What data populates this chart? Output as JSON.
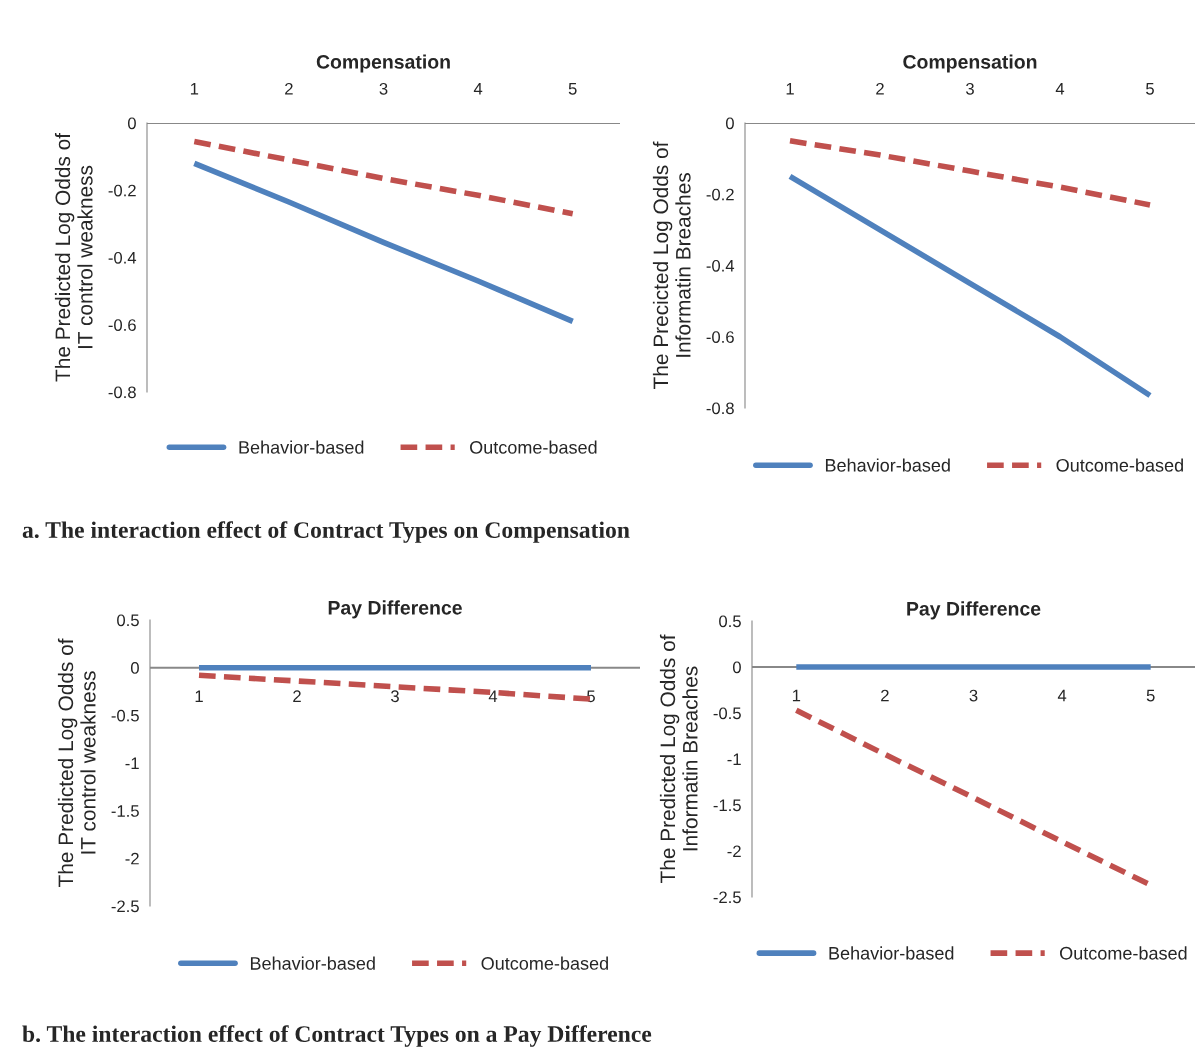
{
  "chart_data": [
    {
      "type": "line",
      "xlabel": "Compensation",
      "ylabel": "The Predicted Log Odds of\nIT control weakness",
      "xlim": [
        0.5,
        5.5
      ],
      "xticks": [
        1,
        2,
        3,
        4,
        5
      ],
      "ylim": [
        -0.8,
        0
      ],
      "yticks": [
        0,
        -0.2,
        -0.4,
        -0.6,
        -0.8
      ],
      "grid": false,
      "legend": "bottom",
      "marker": "none",
      "series": [
        {
          "name": "Behavior-based",
          "color": "#4f81bd",
          "x": [
            1,
            2,
            3,
            4,
            5
          ],
          "values": [
            -0.12,
            -0.235,
            -0.355,
            -0.47,
            -0.59
          ],
          "line_style": "solid"
        },
        {
          "name": "Outcome-based",
          "color": "#c0504d",
          "x": [
            1,
            2,
            3,
            4,
            5
          ],
          "values": [
            -0.055,
            -0.11,
            -0.165,
            -0.215,
            -0.27
          ],
          "line_style": "dashed"
        }
      ]
    },
    {
      "type": "line",
      "xlabel": "Compensation",
      "ylabel": "The Precicted Log Odds of\nInformatin Breaches",
      "xlim": [
        0.5,
        5.5
      ],
      "xticks": [
        1,
        2,
        3,
        4,
        5
      ],
      "ylim": [
        -0.8,
        0
      ],
      "yticks": [
        0,
        -0.2,
        -0.4,
        -0.6,
        -0.8
      ],
      "grid": false,
      "legend": "bottom",
      "marker": "none",
      "annotations": [
        "a. The interaction effect of Contract Types on Compensation"
      ],
      "series": [
        {
          "name": "Behavior-based",
          "color": "#4f81bd",
          "x": [
            1,
            2,
            3,
            4,
            5
          ],
          "values": [
            -0.15,
            -0.3,
            -0.45,
            -0.6,
            -0.765
          ],
          "line_style": "solid"
        },
        {
          "name": "Outcome-based",
          "color": "#c0504d",
          "x": [
            1,
            2,
            3,
            4,
            5
          ],
          "values": [
            -0.05,
            -0.09,
            -0.135,
            -0.18,
            -0.23
          ],
          "line_style": "dashed"
        }
      ]
    },
    {
      "type": "line",
      "title": "Pay Difference",
      "ylabel": "The Predicted Log Odds of\nIT control weakness",
      "xlim": [
        0.5,
        5.5
      ],
      "xticks": [
        1,
        2,
        3,
        4,
        5
      ],
      "ylim": [
        -2.5,
        0.5
      ],
      "yticks": [
        0.5,
        0,
        -0.5,
        -1,
        -1.5,
        -2,
        -2.5
      ],
      "grid": false,
      "legend": "bottom",
      "marker": "none",
      "series": [
        {
          "name": "Behavior-based",
          "color": "#4f81bd",
          "x": [
            1,
            2,
            3,
            4,
            5
          ],
          "values": [
            0,
            0,
            0,
            0,
            0
          ],
          "line_style": "solid"
        },
        {
          "name": "Outcome-based",
          "color": "#c0504d",
          "x": [
            1,
            2,
            3,
            4,
            5
          ],
          "values": [
            -0.08,
            -0.14,
            -0.2,
            -0.26,
            -0.33
          ],
          "line_style": "dashed"
        }
      ]
    },
    {
      "type": "line",
      "title": "Pay Difference",
      "ylabel": "The Predicted Log Odds of\nInformatin Breaches",
      "xlim": [
        0.5,
        5.5
      ],
      "xticks": [
        1,
        2,
        3,
        4,
        5
      ],
      "ylim": [
        -2.5,
        0.5
      ],
      "yticks": [
        0.5,
        0,
        -0.5,
        -1,
        -1.5,
        -2,
        -2.5
      ],
      "grid": false,
      "legend": "bottom",
      "marker": "none",
      "annotations": [
        "b. The interaction effect of Contract Types on a Pay Difference"
      ],
      "series": [
        {
          "name": "Behavior-based",
          "color": "#4f81bd",
          "x": [
            1,
            2,
            3,
            4,
            5
          ],
          "values": [
            0,
            0,
            0,
            0,
            0
          ],
          "line_style": "solid"
        },
        {
          "name": "Outcome-based",
          "color": "#c0504d",
          "x": [
            1,
            2,
            3,
            4,
            5
          ],
          "values": [
            -0.47,
            -0.95,
            -1.42,
            -1.9,
            -2.37
          ],
          "line_style": "dashed"
        }
      ]
    }
  ]
}
